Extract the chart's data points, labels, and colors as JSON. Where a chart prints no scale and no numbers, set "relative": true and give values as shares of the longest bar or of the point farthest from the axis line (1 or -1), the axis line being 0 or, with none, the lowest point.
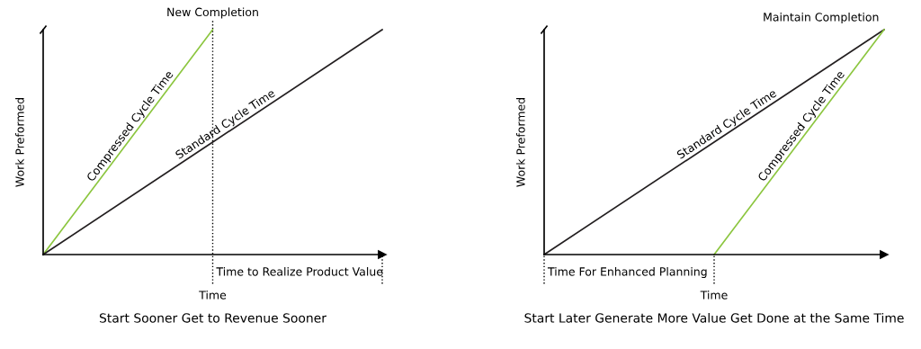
{
  "chart_data": [
    {
      "type": "line",
      "title": "Start Sooner Get to Revenue Sooner",
      "xlabel": "Time",
      "ylabel": "Work Preformed",
      "relative": true,
      "categories": [
        null,
        null,
        null
      ],
      "series": [
        {
          "name": "Compressed Cycle Time",
          "color": "#8cc63f",
          "values": [
            0,
            1,
            null
          ]
        },
        {
          "name": "Standard Cycle Time",
          "color": "#231f20",
          "values": [
            0,
            0.5,
            1
          ]
        }
      ],
      "annotations": [
        "New Completion",
        "Time to Realize Product Value"
      ]
    },
    {
      "type": "line",
      "title": "Start Later Generate More Value Get Done at the Same Time",
      "xlabel": "Time",
      "ylabel": "Work Preformed",
      "relative": true,
      "categories": [
        null,
        null,
        null
      ],
      "series": [
        {
          "name": "Standard Cycle Time",
          "color": "#231f20",
          "values": [
            0,
            0.5,
            1
          ]
        },
        {
          "name": "Compressed Cycle Time",
          "color": "#8cc63f",
          "values": [
            null,
            0,
            1
          ]
        }
      ],
      "annotations": [
        "Maintain Completion",
        "Time For Enhanced Planning"
      ]
    }
  ]
}
